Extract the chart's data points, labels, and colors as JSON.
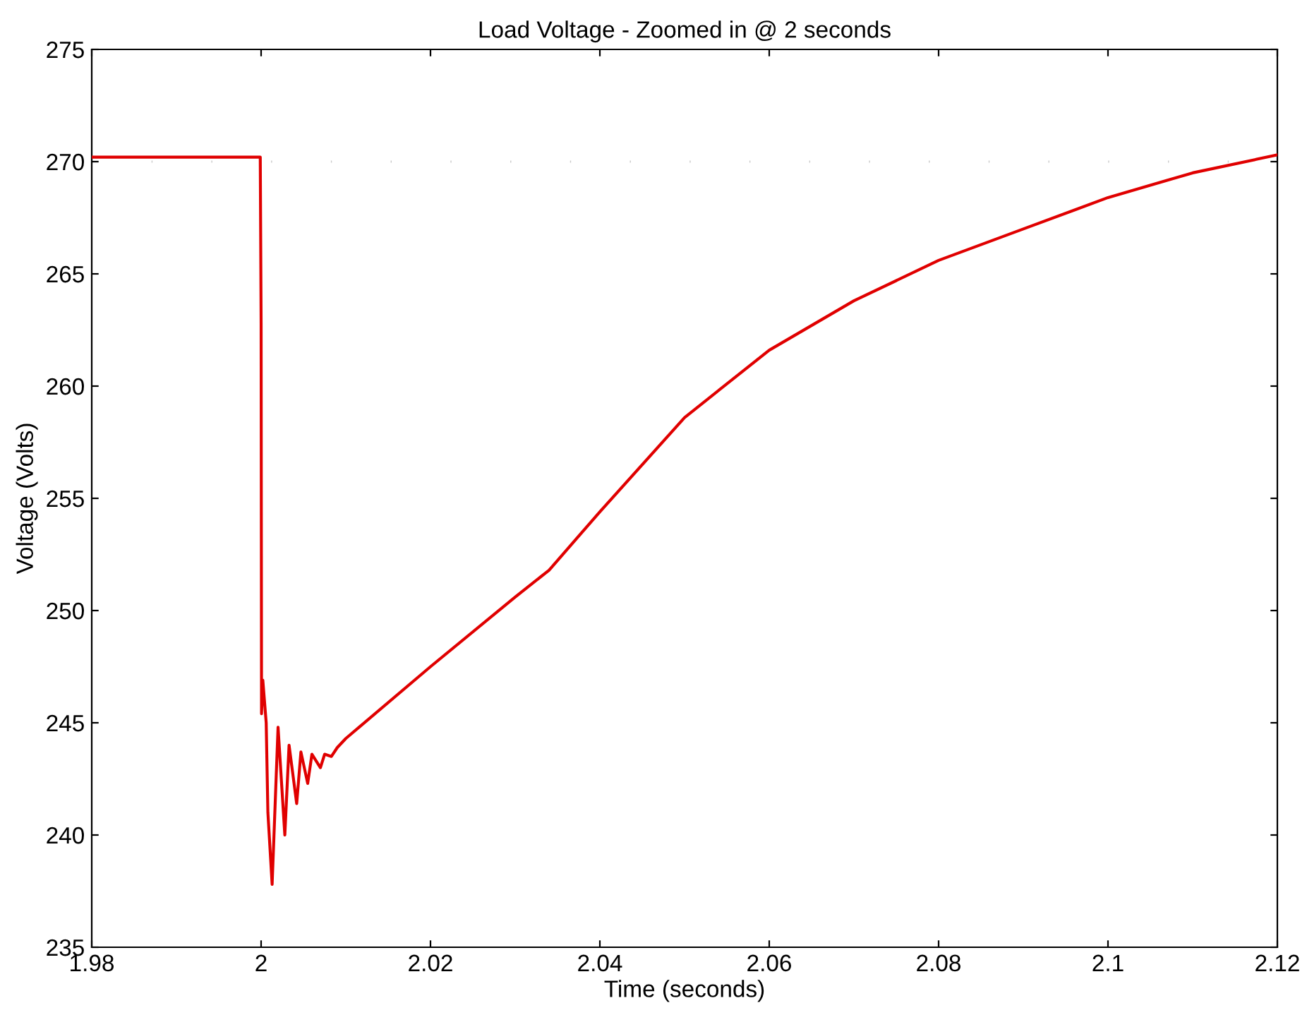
{
  "chart_data": {
    "type": "line",
    "title": "Load Voltage - Zoomed in @ 2 seconds",
    "xlabel": "Time (seconds)",
    "ylabel": "Voltage (Volts)",
    "series": [
      {
        "color": "#e00000",
        "x": [
          1.98,
          1.99,
          1.9999,
          2.0,
          2.00005,
          2.0002,
          2.0006,
          2.0008,
          2.0013,
          2.002,
          2.0028,
          2.0033,
          2.0042,
          2.0047,
          2.0055,
          2.006,
          2.007,
          2.0075,
          2.0083,
          2.009,
          2.01,
          2.02,
          2.03,
          2.034,
          2.04,
          2.05,
          2.06,
          2.07,
          2.08,
          2.09,
          2.1,
          2.11,
          2.12
        ],
        "values": [
          270.2,
          270.2,
          270.2,
          262.8,
          245.4,
          246.9,
          245.0,
          241.0,
          237.8,
          244.8,
          240.0,
          244.0,
          241.4,
          243.7,
          242.3,
          243.6,
          243.0,
          243.6,
          243.5,
          243.9,
          244.3,
          247.5,
          250.6,
          251.8,
          254.4,
          258.6,
          261.6,
          263.8,
          265.6,
          267.0,
          268.4,
          269.5,
          270.3
        ]
      }
    ],
    "xlim": [
      1.98,
      2.12
    ],
    "ylim": [
      235,
      275
    ],
    "xticks": [
      1.98,
      {
        "value": 2.0,
        "label": "2"
      },
      2.02,
      2.04,
      2.06,
      2.08,
      {
        "value": 2.1,
        "label": "2.1"
      },
      2.12
    ],
    "yticks": [
      235,
      240,
      245,
      250,
      255,
      260,
      265,
      270,
      275
    ],
    "ref_lines": [
      {
        "axis": "y",
        "value": 270,
        "color": "#c8c8c8",
        "line_style": "dotted"
      }
    ],
    "grid": false,
    "legend": false,
    "marker": "none",
    "line_style": "solid"
  }
}
